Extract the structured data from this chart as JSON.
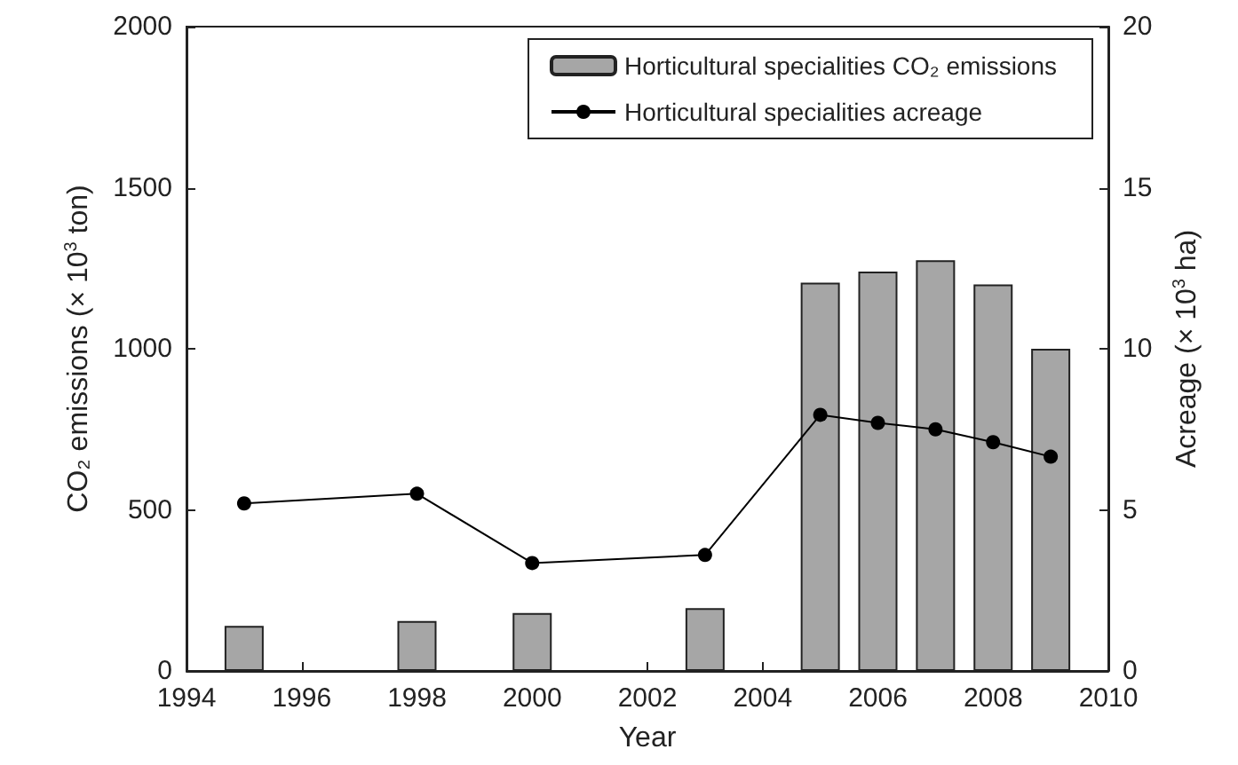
{
  "chart_data": {
    "type": "bar",
    "xlabel": "Year",
    "ylabel": "CO₂ emissions (× 10$^{3}$ ton)",
    "y2label": "Acreage (× 10$^{3}$ ha)",
    "x": [
      1995,
      1998,
      2000,
      2003,
      2005,
      2006,
      2007,
      2008,
      2009
    ],
    "series": [
      {
        "name": "Horticultural specialities CO₂ emissions",
        "color": "#a6a6a6",
        "values": [
          140,
          155,
          180,
          195,
          1205,
          1240,
          1275,
          1200,
          1000
        ]
      },
      {
        "name": "Horticultural specialities acreage",
        "type": "line",
        "axis": "y2",
        "color": "#000000",
        "marker": "circle",
        "values": [
          5.2,
          5.5,
          3.35,
          3.6,
          7.95,
          7.7,
          7.5,
          7.1,
          6.65
        ]
      }
    ],
    "xlim": [
      1994,
      2010
    ],
    "xticks": [
      1994,
      1996,
      1998,
      2000,
      2002,
      2004,
      2006,
      2008,
      2010
    ],
    "ylim": [
      0,
      2000
    ],
    "yticks": [
      0,
      500,
      1000,
      1500,
      2000
    ],
    "y2lim": [
      0,
      20
    ],
    "y2ticks": [
      0,
      5,
      10,
      15,
      20
    ],
    "grid": false,
    "legend": "top right"
  }
}
